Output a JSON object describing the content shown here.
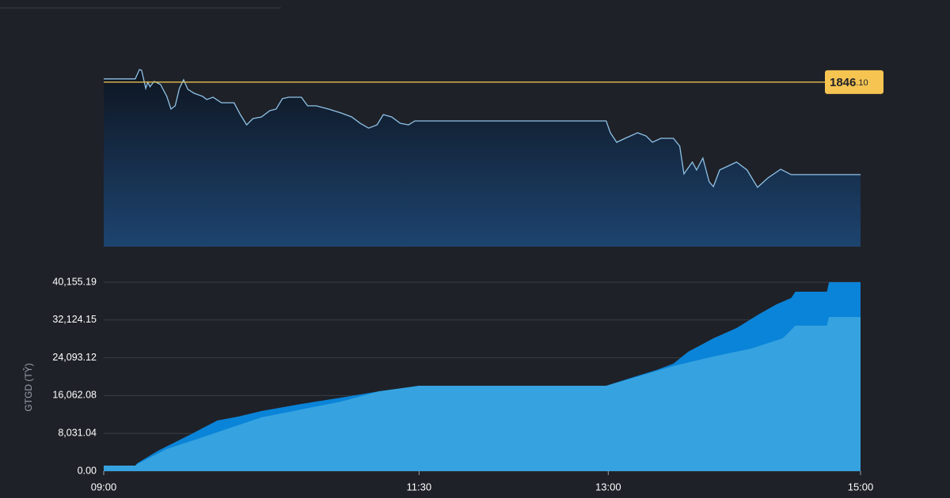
{
  "chart_data": [
    {
      "type": "line",
      "xlim": [
        540,
        900
      ],
      "ylim": [
        1754.5,
        1853.1
      ],
      "reference_line": {
        "value": 1846.1,
        "label": "1846.10",
        "color": "#d8b24a"
      },
      "series": [
        {
          "color": "#8fc3e8",
          "x": [
            540,
            555,
            557,
            558,
            560,
            561,
            562,
            564,
            567,
            570,
            572,
            574,
            576,
            578,
            580,
            583,
            587,
            589,
            592,
            596,
            602,
            605,
            608,
            611,
            615,
            619,
            622,
            625,
            628,
            634,
            637,
            641,
            647,
            653,
            658,
            662,
            666,
            670,
            673,
            677,
            681,
            685,
            688,
            779,
            781,
            784,
            788,
            794,
            798,
            801,
            805,
            811,
            814,
            816,
            820,
            822,
            825,
            828,
            830,
            833,
            841,
            846,
            851,
            856,
            862,
            867,
            900
          ],
          "values": [
            1847.9,
            1847.9,
            1853.1,
            1852.7,
            1842.6,
            1846.1,
            1843.5,
            1846.5,
            1844.8,
            1838.2,
            1831.1,
            1832.9,
            1842.6,
            1847.4,
            1842.1,
            1839.9,
            1838.2,
            1836.4,
            1837.7,
            1834.6,
            1834.6,
            1828.0,
            1822.3,
            1825.8,
            1826.7,
            1830.2,
            1831.1,
            1836.9,
            1837.7,
            1837.7,
            1832.9,
            1832.9,
            1831.1,
            1828.9,
            1826.7,
            1823.2,
            1820.5,
            1822.3,
            1828.0,
            1826.7,
            1823.2,
            1822.3,
            1824.5,
            1824.5,
            1817.9,
            1812.6,
            1814.8,
            1817.9,
            1816.1,
            1812.6,
            1814.8,
            1814.8,
            1810.4,
            1795.0,
            1801.6,
            1797.2,
            1803.8,
            1790.6,
            1787.9,
            1797.2,
            1801.6,
            1797.2,
            1787.5,
            1792.8,
            1797.6,
            1794.6,
            1794.6
          ]
        }
      ]
    },
    {
      "type": "area",
      "ylabel": "GTGD (TỶ)",
      "xlim": [
        540,
        900
      ],
      "ylim": [
        0,
        40155.19
      ],
      "xticks": [
        {
          "value": 540,
          "label": "09:00"
        },
        {
          "value": 690,
          "label": "11:30"
        },
        {
          "value": 780,
          "label": "13:00"
        },
        {
          "value": 900,
          "label": "15:00"
        }
      ],
      "yticks": [
        {
          "value": 0,
          "label": "0.00"
        },
        {
          "value": 8031.04,
          "label": "8,031.04"
        },
        {
          "value": 16062.08,
          "label": "16,062.08"
        },
        {
          "value": 24093.12,
          "label": "24,093.12"
        },
        {
          "value": 32124.15,
          "label": "32,124.15"
        },
        {
          "value": 40155.19,
          "label": "40,155.19"
        }
      ],
      "grid": true,
      "series": [
        {
          "color": "#0a84d8",
          "x": [
            540,
            555,
            556,
            566,
            581,
            594,
            604,
            615,
            634,
            653,
            671,
            690,
            779,
            792,
            803,
            811,
            818,
            830,
            841,
            852,
            860,
            867,
            869,
            884,
            885,
            900
          ],
          "values": [
            1176,
            1176,
            1680,
            4368,
            7728,
            10752,
            11592,
            12768,
            14280,
            15624,
            16968,
            18144,
            18144,
            19992,
            21504,
            22848,
            25368,
            28224,
            30408,
            33432,
            35448,
            36792,
            38136,
            38136,
            40155,
            40155
          ]
        },
        {
          "color": "#36a3e0",
          "x": [
            540,
            555,
            556,
            570,
            585,
            596,
            615,
            634,
            653,
            671,
            690,
            779,
            792,
            811,
            830,
            848,
            863,
            869,
            884,
            885,
            900
          ],
          "values": [
            1176,
            1176,
            1512,
            4704,
            6888,
            8568,
            11424,
            13104,
            14784,
            16968,
            18144,
            18144,
            19824,
            22344,
            24360,
            26040,
            28224,
            30912,
            30912,
            32760,
            32760
          ]
        }
      ]
    }
  ]
}
